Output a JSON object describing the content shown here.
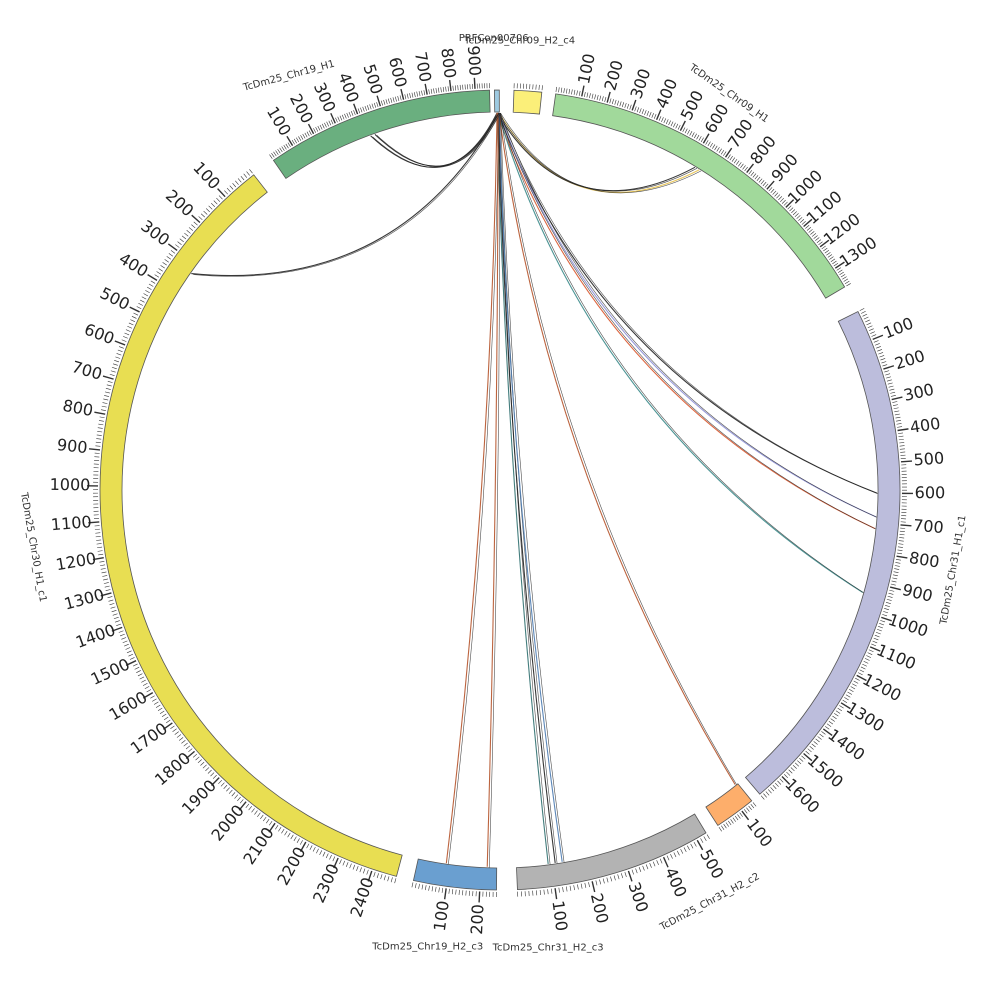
{
  "chart_data": {
    "type": "chord",
    "chromosomes": [
      {
        "name": "TcDm25_Chr09_H1",
        "length": 1380,
        "color": "#a1d99b",
        "labels": [
          "100",
          "200",
          "300",
          "400",
          "500",
          "600",
          "700",
          "800",
          "900",
          "1000",
          "1100",
          "1200",
          "1300"
        ]
      },
      {
        "name": "TcDm25_Chr31_H1_c1",
        "length": 1690,
        "color": "#bcbddc",
        "labels": [
          "100",
          "200",
          "300",
          "400",
          "500",
          "600",
          "700",
          "800",
          "900",
          "1000",
          "1100",
          "1200",
          "1300",
          "1400",
          "1500",
          "1600"
        ]
      },
      {
        "name": "TcDm25_Chr31_H2_c2",
        "length": 150,
        "color": "#fdae6b",
        "labels": [
          "100"
        ]
      },
      {
        "name": "TcDm25_Chr31_H2_c3",
        "length": 530,
        "color": "#b3b3b3",
        "labels": [
          "100",
          "200",
          "300",
          "400",
          "500"
        ]
      },
      {
        "name": "TcDm25_Chr19_H2_c3",
        "length": 250,
        "color": "#6a9fd0",
        "labels": [
          "100",
          "200"
        ]
      },
      {
        "name": "TcDm25_Chr30_H1_c1",
        "length": 2470,
        "color": "#e8de52",
        "labels": [
          "100",
          "200",
          "300",
          "400",
          "500",
          "600",
          "700",
          "800",
          "900",
          "1000",
          "1100",
          "1200",
          "1300",
          "1400",
          "1500",
          "1600",
          "1700",
          "1800",
          "1900",
          "2000",
          "2100",
          "2200",
          "2300",
          "2400"
        ]
      },
      {
        "name": "TcDm25_Chr19_H1",
        "length": 960,
        "color": "#6aaf7f",
        "labels": [
          "100",
          "200",
          "300",
          "400",
          "500",
          "600",
          "700",
          "800",
          "900"
        ]
      },
      {
        "name": "PRFCon00706",
        "length": 10,
        "color": "#9ecae1",
        "labels": []
      },
      {
        "name": "TcDm25_Chr09_H2_c4",
        "length": 90,
        "color": "#fbef79",
        "labels": []
      }
    ],
    "links": [
      {
        "from": "PRFCon00706",
        "to": "TcDm25_Chr19_H1",
        "to_pos": 420,
        "color": "#222222"
      },
      {
        "from": "PRFCon00706",
        "to": "TcDm25_Chr19_H1",
        "to_pos": 440,
        "color": "#222222"
      },
      {
        "from": "PRFCon00706",
        "to": "TcDm25_Chr09_H1",
        "to_pos": 640,
        "color": "#e6c04a"
      },
      {
        "from": "PRFCon00706",
        "to": "TcDm25_Chr09_H1",
        "to_pos": 620,
        "color": "#222222"
      },
      {
        "from": "PRFCon00706",
        "to": "TcDm25_Chr31_H1_c1",
        "to_pos": 600,
        "color": "#222222"
      },
      {
        "from": "PRFCon00706",
        "to": "TcDm25_Chr31_H1_c1",
        "to_pos": 680,
        "color": "#8d90d6"
      },
      {
        "from": "PRFCon00706",
        "to": "TcDm25_Chr31_H1_c1",
        "to_pos": 720,
        "color": "#d9552b"
      },
      {
        "from": "PRFCon00706",
        "to": "TcDm25_Chr31_H1_c1",
        "to_pos": 940,
        "color": "#3a8a8a"
      },
      {
        "from": "PRFCon00706",
        "to": "TcDm25_Chr31_H2_c2",
        "to_pos": 140,
        "color": "#b5532a"
      },
      {
        "from": "PRFCon00706",
        "to": "TcDm25_Chr31_H2_c3",
        "to_pos": 90,
        "color": "#2f6f6f"
      },
      {
        "from": "PRFCon00706",
        "to": "TcDm25_Chr31_H2_c3",
        "to_pos": 110,
        "color": "#222222"
      },
      {
        "from": "PRFCon00706",
        "to": "TcDm25_Chr31_H2_c3",
        "to_pos": 130,
        "color": "#4a7ab0"
      },
      {
        "from": "PRFCon00706",
        "to": "TcDm25_Chr19_H2_c3",
        "to_pos": 90,
        "color": "#b5532a"
      },
      {
        "from": "PRFCon00706",
        "to": "TcDm25_Chr19_H2_c3",
        "to_pos": 220,
        "color": "#b5532a"
      },
      {
        "from": "PRFCon00706",
        "to": "TcDm25_Chr30_H1_c1",
        "to_pos": 330,
        "color": "#222222"
      }
    ]
  }
}
